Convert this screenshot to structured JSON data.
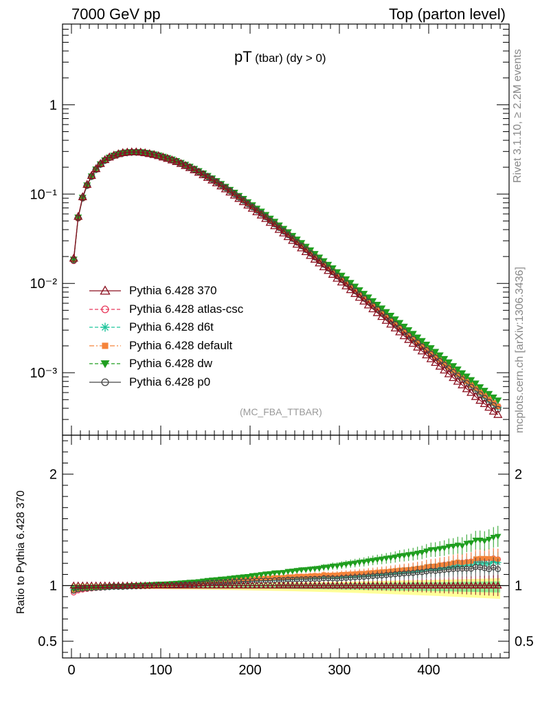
{
  "header": {
    "left": "7000 GeV pp",
    "right": "Top (parton level)"
  },
  "side_labels": {
    "rivet": "Rivet 3.1.10, ≥ 2.2M events",
    "mcplots": "mcplots.cern.ch [arXiv:1306.3436]"
  },
  "plot_title": {
    "main": "pT",
    "sub": "(tbar) (dy > 0)"
  },
  "analysis_tag": "(MC_FBA_TTBAR)",
  "chart_data": [
    {
      "type": "line",
      "panel": "main",
      "ylog": true,
      "ylim": [
        0.0002,
        8
      ],
      "xlim": [
        -10,
        490
      ],
      "yticks": [
        {
          "value": 1,
          "label": "1"
        },
        {
          "value": 0.1,
          "label": "10⁻¹"
        },
        {
          "value": 0.01,
          "label": "10⁻²"
        },
        {
          "value": 0.001,
          "label": "10⁻³"
        }
      ],
      "x": [
        2.5,
        7.5,
        12.5,
        17.5,
        22.5,
        27.5,
        32.5,
        37.5,
        42.5,
        47.5,
        52.5,
        57.5,
        62.5,
        67.5,
        72.5,
        77.5,
        82.5,
        87.5,
        92.5,
        97.5,
        102.5,
        107.5,
        112.5,
        117.5,
        122.5,
        127.5,
        132.5,
        137.5,
        142.5,
        147.5,
        152.5,
        157.5,
        162.5,
        167.5,
        172.5,
        177.5,
        182.5,
        187.5,
        192.5,
        197.5,
        202.5,
        207.5,
        212.5,
        217.5,
        222.5,
        227.5,
        232.5,
        237.5,
        242.5,
        247.5,
        252.5,
        257.5,
        262.5,
        267.5,
        272.5,
        277.5,
        282.5,
        287.5,
        292.5,
        297.5,
        302.5,
        307.5,
        312.5,
        317.5,
        322.5,
        327.5,
        332.5,
        337.5,
        342.5,
        347.5,
        352.5,
        357.5,
        362.5,
        367.5,
        372.5,
        377.5,
        382.5,
        387.5,
        392.5,
        397.5,
        402.5,
        407.5,
        412.5,
        417.5,
        422.5,
        427.5,
        432.5,
        437.5,
        442.5,
        447.5,
        452.5,
        457.5,
        462.5,
        467.5,
        472.5,
        477.5
      ],
      "series": [
        {
          "name": "Pythia 6.428 370",
          "color": "#8b0f1f",
          "marker": "triangle-open",
          "line": "solid",
          "values": [
            0.0191,
            0.0561,
            0.0931,
            0.1281,
            0.1611,
            0.1921,
            0.2191,
            0.2421,
            0.2591,
            0.2721,
            0.2821,
            0.2901,
            0.2941,
            0.2961,
            0.2961,
            0.2941,
            0.2891,
            0.2831,
            0.2761,
            0.2681,
            0.2591,
            0.2501,
            0.2401,
            0.2301,
            0.2191,
            0.2081,
            0.1971,
            0.1861,
            0.1751,
            0.1641,
            0.1531,
            0.1431,
            0.1331,
            0.1231,
            0.1141,
            0.1051,
            0.0971,
            0.0891,
            0.0821,
            0.0751,
            0.0691,
            0.0631,
            0.0581,
            0.0531,
            0.0481,
            0.0441,
            0.0401,
            0.0366,
            0.0333,
            0.0302,
            0.0274,
            0.0249,
            0.0226,
            0.0205,
            0.0186,
            0.0169,
            0.0153,
            0.0139,
            0.0126,
            0.0114,
            0.01033,
            0.00936,
            0.00848,
            0.00769,
            0.00697,
            0.00632,
            0.00572,
            0.00518,
            0.00469,
            0.00425,
            0.00385,
            0.00349,
            0.00316,
            0.00286,
            0.00259,
            0.00235,
            0.00213,
            0.00193,
            0.00175,
            0.00158,
            0.00143,
            0.0013,
            0.00118,
            0.00107,
            0.00097,
            0.00088,
            0.0008,
            0.00073,
            0.00066,
            0.0006,
            0.00054,
            0.00049,
            0.00045,
            0.00041,
            0.00037,
            0.00034
          ]
        },
        {
          "name": "Pythia 6.428 atlas-csc",
          "color": "#e8375a",
          "marker": "circle-open",
          "line": "dashed",
          "values": [
            0.0179,
            0.0536,
            0.0897,
            0.1241,
            0.1568,
            0.1878,
            0.2146,
            0.238,
            0.2554,
            0.2688,
            0.2788,
            0.2867,
            0.2916,
            0.2943,
            0.2945,
            0.2935,
            0.2888,
            0.2835,
            0.2771,
            0.2695,
            0.2606,
            0.2517,
            0.2422,
            0.2325,
            0.2218,
            0.2111,
            0.2003,
            0.1893,
            0.1787,
            0.1682,
            0.1577,
            0.1478,
            0.1376,
            0.1276,
            0.1186,
            0.1095,
            0.1015,
            0.0934,
            0.0863,
            0.0789,
            0.073,
            0.0668,
            0.0617,
            0.0565,
            0.0511,
            0.0471,
            0.0428,
            0.0391,
            0.0358,
            0.0324,
            0.0296,
            0.0269,
            0.0244,
            0.0222,
            0.0201,
            0.0183,
            0.0166,
            0.0151,
            0.0137,
            0.0124,
            0.01125,
            0.01022,
            0.00929,
            0.00844,
            0.00768,
            0.00697,
            0.00633,
            0.00575,
            0.00521,
            0.00474,
            0.00431,
            0.00392,
            0.00356,
            0.00323,
            0.00294,
            0.00268,
            0.00244,
            0.00222,
            0.00202,
            0.00184,
            0.00167,
            0.00152,
            0.00139,
            0.00127,
            0.00115,
            0.00105,
            0.00096,
            0.00088,
            0.0008,
            0.00073,
            0.00066,
            0.0006,
            0.00055,
            0.0005,
            0.00046,
            0.00042
          ]
        },
        {
          "name": "Pythia 6.428 d6t",
          "color": "#1fc59c",
          "marker": "star",
          "line": "dashed",
          "values": [
            0.0184,
            0.0545,
            0.0908,
            0.1251,
            0.1577,
            0.1885,
            0.2153,
            0.2386,
            0.256,
            0.2694,
            0.2794,
            0.2873,
            0.292,
            0.2946,
            0.2949,
            0.2935,
            0.2888,
            0.2833,
            0.2769,
            0.2693,
            0.2604,
            0.2515,
            0.2419,
            0.2322,
            0.2215,
            0.2108,
            0.2,
            0.189,
            0.1783,
            0.1677,
            0.1572,
            0.1473,
            0.1372,
            0.1272,
            0.1181,
            0.1091,
            0.1011,
            0.0929,
            0.0858,
            0.0786,
            0.0726,
            0.0664,
            0.0613,
            0.0562,
            0.0509,
            0.0468,
            0.0426,
            0.0389,
            0.0355,
            0.0322,
            0.0293,
            0.0267,
            0.0242,
            0.022,
            0.02,
            0.0182,
            0.0165,
            0.015,
            0.0136,
            0.0123,
            0.01118,
            0.01014,
            0.00921,
            0.00836,
            0.0076,
            0.0069,
            0.00627,
            0.00569,
            0.00516,
            0.00469,
            0.00426,
            0.00388,
            0.00352,
            0.00319,
            0.0029,
            0.00264,
            0.0024,
            0.00218,
            0.00199,
            0.00181,
            0.00164,
            0.00149,
            0.00136,
            0.00124,
            0.00113,
            0.00103,
            0.00094,
            0.00086,
            0.00078,
            0.00071,
            0.00065,
            0.00059,
            0.00054,
            0.00049,
            0.00045,
            0.00041
          ]
        },
        {
          "name": "Pythia 6.428 default",
          "color": "#f5843a",
          "marker": "square",
          "line": "dashdot",
          "values": [
            0.0182,
            0.0541,
            0.0903,
            0.1246,
            0.1573,
            0.1882,
            0.2151,
            0.2385,
            0.2561,
            0.2697,
            0.2798,
            0.2878,
            0.2926,
            0.2952,
            0.2956,
            0.2943,
            0.2897,
            0.2842,
            0.2778,
            0.2703,
            0.2614,
            0.2526,
            0.243,
            0.2333,
            0.2226,
            0.2119,
            0.2011,
            0.1901,
            0.1794,
            0.1687,
            0.1582,
            0.1482,
            0.1381,
            0.1281,
            0.1189,
            0.1099,
            0.1018,
            0.0936,
            0.0865,
            0.0792,
            0.0732,
            0.067,
            0.0619,
            0.0567,
            0.0514,
            0.0473,
            0.043,
            0.0393,
            0.0359,
            0.0326,
            0.0297,
            0.027,
            0.0245,
            0.0223,
            0.0203,
            0.0184,
            0.0168,
            0.0152,
            0.0138,
            0.0125,
            0.01137,
            0.01032,
            0.00937,
            0.00851,
            0.00774,
            0.00702,
            0.00638,
            0.00579,
            0.00526,
            0.00478,
            0.00434,
            0.00395,
            0.00359,
            0.00326,
            0.00296,
            0.00269,
            0.00245,
            0.00223,
            0.00203,
            0.00185,
            0.00168,
            0.00153,
            0.0014,
            0.00127,
            0.00116,
            0.00106,
            0.00097,
            0.00088,
            0.0008,
            0.00073,
            0.00067,
            0.00061,
            0.00056,
            0.00051,
            0.00046,
            0.00042
          ]
        },
        {
          "name": "Pythia 6.428 dw",
          "color": "#1f9e1f",
          "marker": "triangle-down",
          "line": "dashed",
          "values": [
            0.0185,
            0.0548,
            0.0911,
            0.1254,
            0.1581,
            0.1889,
            0.2158,
            0.2391,
            0.2566,
            0.2701,
            0.2802,
            0.2882,
            0.293,
            0.2958,
            0.2962,
            0.2949,
            0.2904,
            0.285,
            0.2787,
            0.2713,
            0.2625,
            0.2538,
            0.2443,
            0.2347,
            0.2241,
            0.2135,
            0.2028,
            0.1918,
            0.1812,
            0.1706,
            0.1601,
            0.1501,
            0.1401,
            0.1301,
            0.1209,
            0.1119,
            0.1038,
            0.0956,
            0.0885,
            0.0812,
            0.0752,
            0.0689,
            0.0638,
            0.0586,
            0.0532,
            0.0491,
            0.0447,
            0.0409,
            0.0375,
            0.0341,
            0.0311,
            0.0284,
            0.0258,
            0.0235,
            0.0214,
            0.0195,
            0.0178,
            0.0162,
            0.0148,
            0.0134,
            0.01223,
            0.01114,
            0.01015,
            0.00924,
            0.00842,
            0.00766,
            0.00698,
            0.00635,
            0.00578,
            0.00526,
            0.00479,
            0.00436,
            0.00397,
            0.00362,
            0.00329,
            0.003,
            0.00273,
            0.00249,
            0.00227,
            0.00207,
            0.00189,
            0.00172,
            0.00157,
            0.00143,
            0.00131,
            0.00119,
            0.00109,
            0.00099,
            0.00091,
            0.00083,
            0.00076,
            0.00069,
            0.00063,
            0.00058,
            0.00053,
            0.00049
          ]
        },
        {
          "name": "Pythia 6.428 p0",
          "color": "#444444",
          "marker": "circle-open",
          "line": "solid",
          "values": [
            0.0182,
            0.0542,
            0.0905,
            0.1249,
            0.1574,
            0.1882,
            0.2149,
            0.2381,
            0.2555,
            0.2689,
            0.2788,
            0.2866,
            0.2912,
            0.2937,
            0.2939,
            0.2923,
            0.2876,
            0.282,
            0.2756,
            0.2681,
            0.2592,
            0.2503,
            0.2407,
            0.2311,
            0.2205,
            0.2099,
            0.1992,
            0.1884,
            0.1777,
            0.1671,
            0.1566,
            0.1466,
            0.1366,
            0.1266,
            0.1175,
            0.1085,
            0.1005,
            0.0923,
            0.0852,
            0.078,
            0.0719,
            0.0658,
            0.0606,
            0.0555,
            0.0502,
            0.0462,
            0.0421,
            0.0384,
            0.0351,
            0.0318,
            0.0289,
            0.0263,
            0.0239,
            0.0217,
            0.0197,
            0.0179,
            0.0163,
            0.0148,
            0.0134,
            0.0121,
            0.01101,
            0.01,
            0.00908,
            0.00825,
            0.0075,
            0.00681,
            0.00619,
            0.00562,
            0.0051,
            0.00463,
            0.00421,
            0.00383,
            0.00348,
            0.00316,
            0.00287,
            0.00261,
            0.00237,
            0.00216,
            0.00196,
            0.00178,
            0.00162,
            0.00147,
            0.00134,
            0.00122,
            0.00111,
            0.00101,
            0.00092,
            0.00084,
            0.00076,
            0.00069,
            0.00063,
            0.00057,
            0.00052,
            0.00047,
            0.00043,
            0.00039
          ]
        }
      ],
      "legend": "left, middle"
    },
    {
      "type": "line",
      "panel": "ratio",
      "ylabel": "Ratio to Pythia 6.428 370",
      "ylim": [
        0.35,
        2.35
      ],
      "xlim": [
        -10,
        490
      ],
      "yticks": [
        {
          "value": 0.5,
          "label": "0.5"
        },
        {
          "value": 1,
          "label": "1"
        },
        {
          "value": 2,
          "label": "2"
        }
      ],
      "xticks": [
        {
          "value": 0,
          "label": "0"
        },
        {
          "value": 100,
          "label": "100"
        },
        {
          "value": 200,
          "label": "200"
        },
        {
          "value": 300,
          "label": "300"
        },
        {
          "value": 400,
          "label": "400"
        }
      ],
      "reference_band": {
        "inner_color": "#90ee90",
        "outer_color": "#ffff99"
      }
    }
  ]
}
